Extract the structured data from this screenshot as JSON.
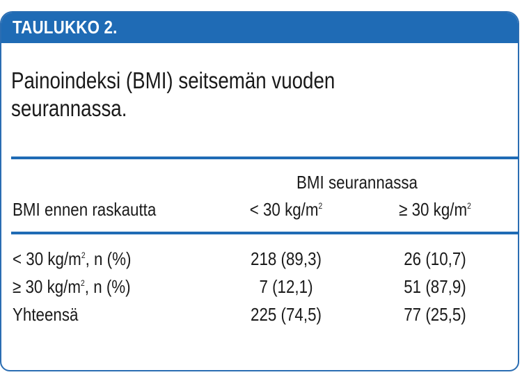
{
  "table_label": "TAULUKKO 2.",
  "title_line1": "Painoindeksi (BMI) seitsemän vuoden",
  "title_line2": "seurannassa.",
  "header": {
    "group_label": "BMI seurannassa",
    "row_header": "BMI ennen raskautta",
    "col1_prefix": "< 30 kg/m",
    "col2_prefix": "≥ 30 kg/m",
    "sup": "2"
  },
  "rows": [
    {
      "label_prefix": "< 30 kg/m",
      "label_sup": "2",
      "label_suffix": ", n (%)",
      "col1": "218 (89,3)",
      "col2": "26 (10,7)"
    },
    {
      "label_prefix": "≥ 30 kg/m",
      "label_sup": "2",
      "label_suffix": ", n (%)",
      "col1": "7 (12,1)",
      "col2": "51 (87,9)"
    },
    {
      "label_prefix": "Yhteensä",
      "label_sup": "",
      "label_suffix": "",
      "col1": "225 (74,5)",
      "col2": "77 (25,5)"
    }
  ],
  "colors": {
    "accent": "#1f6bb5"
  }
}
